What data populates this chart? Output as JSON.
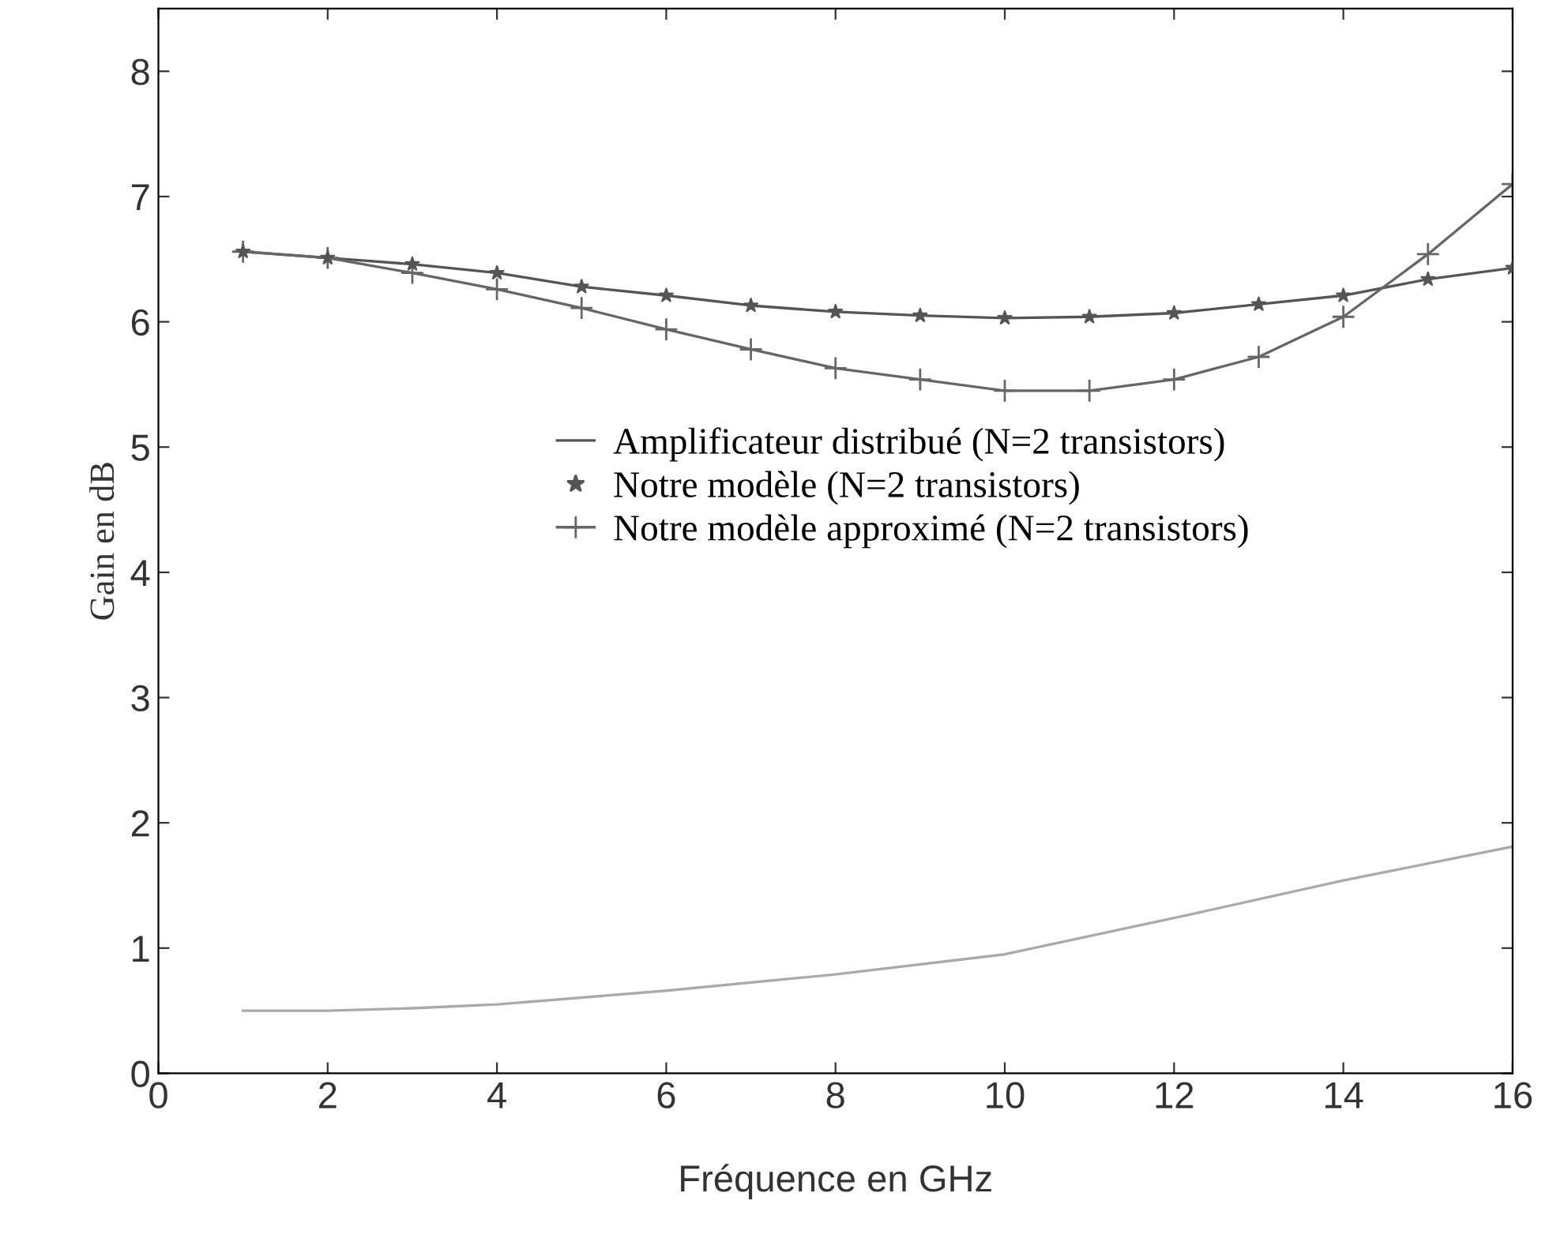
{
  "chart_data": {
    "type": "line",
    "xlabel": "Fréquence en GHz",
    "ylabel": "Gain en dB",
    "x": [
      1,
      2,
      3,
      4,
      5,
      6,
      7,
      8,
      9,
      10,
      11,
      12,
      13,
      14,
      15,
      16
    ],
    "series": [
      {
        "name": "Amplificateur distribué (N=2 transistors)",
        "color": "#555555",
        "marker": "none",
        "values": [
          6.56,
          6.51,
          6.46,
          6.39,
          6.28,
          6.21,
          6.13,
          6.08,
          6.05,
          6.03,
          6.04,
          6.07,
          6.14,
          6.21,
          6.34,
          6.43
        ]
      },
      {
        "name": "Notre modèle (N=2 transistors)",
        "type": "scatter",
        "color": "#555555",
        "marker": "star",
        "values": [
          6.56,
          6.51,
          6.46,
          6.39,
          6.28,
          6.21,
          6.13,
          6.08,
          6.05,
          6.03,
          6.04,
          6.07,
          6.14,
          6.21,
          6.34,
          6.43
        ]
      },
      {
        "name": "Notre modèle approximé (N=2 transistors)",
        "color": "#666666",
        "marker": "cross",
        "values": [
          6.56,
          6.51,
          6.39,
          6.26,
          6.11,
          5.94,
          5.78,
          5.63,
          5.54,
          5.45,
          5.45,
          5.54,
          5.72,
          6.04,
          6.54,
          7.1
        ]
      },
      {
        "color": "#aaaaaa",
        "marker": "none",
        "x": [
          1,
          2,
          3,
          4,
          6,
          8,
          10,
          12,
          14,
          16
        ],
        "values": [
          0.5,
          0.5,
          0.52,
          0.55,
          0.66,
          0.79,
          0.95,
          1.24,
          1.54,
          1.81
        ]
      }
    ],
    "xlim": [
      0,
      16
    ],
    "xticks": [
      0,
      2,
      4,
      6,
      8,
      10,
      12,
      14,
      16
    ],
    "ylim": [
      0,
      8.5
    ],
    "yticks": [
      0,
      1,
      2,
      3,
      4,
      5,
      6,
      7,
      8
    ],
    "grid": false,
    "legend": "center",
    "line_style": "solid"
  }
}
